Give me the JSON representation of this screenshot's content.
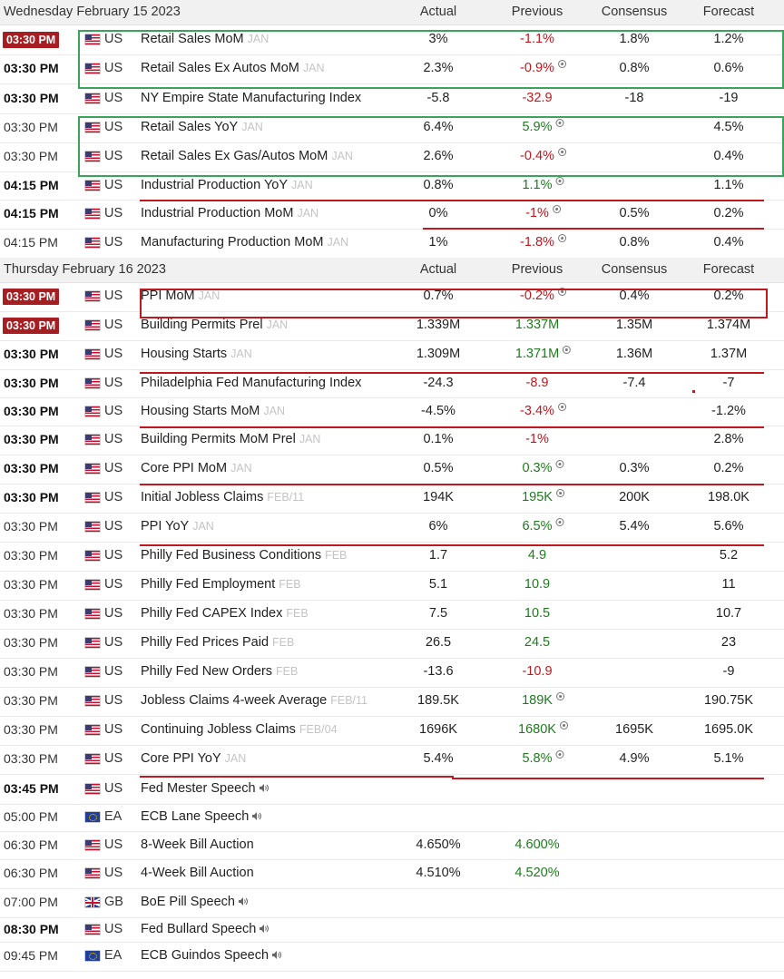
{
  "columns": {
    "actual": "Actual",
    "previous": "Previous",
    "consensus": "Consensus",
    "forecast": "Forecast"
  },
  "days": [
    {
      "title": "Wednesday February 15 2023",
      "rows": [
        {
          "time": "03:30 PM",
          "style": "badge",
          "flag": "us",
          "country": "US",
          "event": "Retail Sales MoM",
          "period": "JAN",
          "actual": "3%",
          "previous": "-1.1%",
          "prev_color": "red",
          "prev_revised": false,
          "consensus": "1.8%",
          "forecast": "1.2%"
        },
        {
          "time": "03:30 PM",
          "style": "bold",
          "flag": "us",
          "country": "US",
          "event": "Retail Sales Ex Autos MoM",
          "period": "JAN",
          "actual": "2.3%",
          "previous": "-0.9%",
          "prev_color": "red",
          "prev_revised": true,
          "consensus": "0.8%",
          "forecast": "0.6%"
        },
        {
          "time": "03:30 PM",
          "style": "bold",
          "flag": "us",
          "country": "US",
          "event": "NY Empire State Manufacturing Index",
          "period": "",
          "actual": "-5.8",
          "previous": "-32.9",
          "prev_color": "red",
          "prev_revised": false,
          "consensus": "-18",
          "forecast": "-19"
        },
        {
          "time": "03:30 PM",
          "style": "",
          "flag": "us",
          "country": "US",
          "event": "Retail Sales YoY",
          "period": "JAN",
          "actual": "6.4%",
          "previous": "5.9%",
          "prev_color": "green",
          "prev_revised": true,
          "consensus": "",
          "forecast": "4.5%"
        },
        {
          "time": "03:30 PM",
          "style": "",
          "flag": "us",
          "country": "US",
          "event": "Retail Sales Ex Gas/Autos MoM",
          "period": "JAN",
          "actual": "2.6%",
          "previous": "-0.4%",
          "prev_color": "red",
          "prev_revised": true,
          "consensus": "",
          "forecast": "0.4%"
        },
        {
          "time": "04:15 PM",
          "style": "bold",
          "flag": "us",
          "country": "US",
          "event": "Industrial Production YoY",
          "period": "JAN",
          "actual": "0.8%",
          "previous": "1.1%",
          "prev_color": "green",
          "prev_revised": true,
          "consensus": "",
          "forecast": "1.1%"
        },
        {
          "time": "04:15 PM",
          "style": "bold",
          "flag": "us",
          "country": "US",
          "event": "Industrial Production MoM",
          "period": "JAN",
          "actual": "0%",
          "previous": "-1%",
          "prev_color": "red",
          "prev_revised": true,
          "consensus": "0.5%",
          "forecast": "0.2%"
        },
        {
          "time": "04:15 PM",
          "style": "",
          "flag": "us",
          "country": "US",
          "event": "Manufacturing Production MoM",
          "period": "JAN",
          "actual": "1%",
          "previous": "-1.8%",
          "prev_color": "red",
          "prev_revised": true,
          "consensus": "0.8%",
          "forecast": "0.4%"
        }
      ]
    },
    {
      "title": "Thursday February 16 2023",
      "rows": [
        {
          "time": "03:30 PM",
          "style": "badge",
          "flag": "us",
          "country": "US",
          "event": "PPI MoM",
          "period": "JAN",
          "actual": "0.7%",
          "previous": "-0.2%",
          "prev_color": "red",
          "prev_revised": true,
          "consensus": "0.4%",
          "forecast": "0.2%"
        },
        {
          "time": "03:30 PM",
          "style": "badge",
          "flag": "us",
          "country": "US",
          "event": "Building Permits Prel",
          "period": "JAN",
          "actual": "1.339M",
          "previous": "1.337M",
          "prev_color": "green",
          "prev_revised": false,
          "consensus": "1.35M",
          "forecast": "1.374M"
        },
        {
          "time": "03:30 PM",
          "style": "bold",
          "flag": "us",
          "country": "US",
          "event": "Housing Starts",
          "period": "JAN",
          "actual": "1.309M",
          "previous": "1.371M",
          "prev_color": "green",
          "prev_revised": true,
          "consensus": "1.36M",
          "forecast": "1.37M"
        },
        {
          "time": "03:30 PM",
          "style": "bold",
          "flag": "us",
          "country": "US",
          "event": "Philadelphia Fed Manufacturing Index",
          "period": "",
          "actual": "-24.3",
          "previous": "-8.9",
          "prev_color": "red",
          "prev_revised": false,
          "consensus": "-7.4",
          "forecast": "-7"
        },
        {
          "time": "03:30 PM",
          "style": "bold",
          "flag": "us",
          "country": "US",
          "event": "Housing Starts MoM",
          "period": "JAN",
          "actual": "-4.5%",
          "previous": "-3.4%",
          "prev_color": "red",
          "prev_revised": true,
          "consensus": "",
          "forecast": "-1.2%"
        },
        {
          "time": "03:30 PM",
          "style": "bold",
          "flag": "us",
          "country": "US",
          "event": "Building Permits MoM Prel",
          "period": "JAN",
          "actual": "0.1%",
          "previous": "-1%",
          "prev_color": "red",
          "prev_revised": false,
          "consensus": "",
          "forecast": "2.8%"
        },
        {
          "time": "03:30 PM",
          "style": "bold",
          "flag": "us",
          "country": "US",
          "event": "Core PPI MoM",
          "period": "JAN",
          "actual": "0.5%",
          "previous": "0.3%",
          "prev_color": "green",
          "prev_revised": true,
          "consensus": "0.3%",
          "forecast": "0.2%"
        },
        {
          "time": "03:30 PM",
          "style": "bold",
          "flag": "us",
          "country": "US",
          "event": "Initial Jobless Claims",
          "period": "FEB/11",
          "actual": "194K",
          "previous": "195K",
          "prev_color": "green",
          "prev_revised": true,
          "consensus": "200K",
          "forecast": "198.0K"
        },
        {
          "time": "03:30 PM",
          "style": "",
          "flag": "us",
          "country": "US",
          "event": "PPI YoY",
          "period": "JAN",
          "actual": "6%",
          "previous": "6.5%",
          "prev_color": "green",
          "prev_revised": true,
          "consensus": "5.4%",
          "forecast": "5.6%"
        },
        {
          "time": "03:30 PM",
          "style": "",
          "flag": "us",
          "country": "US",
          "event": "Philly Fed Business Conditions",
          "period": "FEB",
          "actual": "1.7",
          "previous": "4.9",
          "prev_color": "green",
          "prev_revised": false,
          "consensus": "",
          "forecast": "5.2"
        },
        {
          "time": "03:30 PM",
          "style": "",
          "flag": "us",
          "country": "US",
          "event": "Philly Fed Employment",
          "period": "FEB",
          "actual": "5.1",
          "previous": "10.9",
          "prev_color": "green",
          "prev_revised": false,
          "consensus": "",
          "forecast": "11"
        },
        {
          "time": "03:30 PM",
          "style": "",
          "flag": "us",
          "country": "US",
          "event": "Philly Fed CAPEX Index",
          "period": "FEB",
          "actual": "7.5",
          "previous": "10.5",
          "prev_color": "green",
          "prev_revised": false,
          "consensus": "",
          "forecast": "10.7"
        },
        {
          "time": "03:30 PM",
          "style": "",
          "flag": "us",
          "country": "US",
          "event": "Philly Fed Prices Paid",
          "period": "FEB",
          "actual": "26.5",
          "previous": "24.5",
          "prev_color": "green",
          "prev_revised": false,
          "consensus": "",
          "forecast": "23"
        },
        {
          "time": "03:30 PM",
          "style": "",
          "flag": "us",
          "country": "US",
          "event": "Philly Fed New Orders",
          "period": "FEB",
          "actual": "-13.6",
          "previous": "-10.9",
          "prev_color": "red",
          "prev_revised": false,
          "consensus": "",
          "forecast": "-9"
        },
        {
          "time": "03:30 PM",
          "style": "",
          "flag": "us",
          "country": "US",
          "event": "Jobless Claims 4-week Average",
          "period": "FEB/11",
          "actual": "189.5K",
          "previous": "189K",
          "prev_color": "green",
          "prev_revised": true,
          "consensus": "",
          "forecast": "190.75K"
        },
        {
          "time": "03:30 PM",
          "style": "",
          "flag": "us",
          "country": "US",
          "event": "Continuing Jobless Claims",
          "period": "FEB/04",
          "actual": "1696K",
          "previous": "1680K",
          "prev_color": "green",
          "prev_revised": true,
          "consensus": "1695K",
          "forecast": "1695.0K"
        },
        {
          "time": "03:30 PM",
          "style": "",
          "flag": "us",
          "country": "US",
          "event": "Core PPI YoY",
          "period": "JAN",
          "actual": "5.4%",
          "previous": "5.8%",
          "prev_color": "green",
          "prev_revised": true,
          "consensus": "4.9%",
          "forecast": "5.1%"
        },
        {
          "time": "03:45 PM",
          "style": "bold",
          "flag": "us",
          "country": "US",
          "event": "Fed Mester Speech",
          "period": "",
          "speech": true,
          "actual": "",
          "previous": "",
          "prev_color": "",
          "prev_revised": false,
          "consensus": "",
          "forecast": ""
        },
        {
          "time": "05:00 PM",
          "style": "",
          "flag": "eu",
          "country": "EA",
          "event": "ECB Lane Speech",
          "period": "",
          "speech": true,
          "actual": "",
          "previous": "",
          "prev_color": "",
          "prev_revised": false,
          "consensus": "",
          "forecast": ""
        },
        {
          "time": "06:30 PM",
          "style": "",
          "flag": "us",
          "country": "US",
          "event": "8-Week Bill Auction",
          "period": "",
          "actual": "4.650%",
          "previous": "4.600%",
          "prev_color": "green",
          "prev_revised": false,
          "consensus": "",
          "forecast": ""
        },
        {
          "time": "06:30 PM",
          "style": "",
          "flag": "us",
          "country": "US",
          "event": "4-Week Bill Auction",
          "period": "",
          "actual": "4.510%",
          "previous": "4.520%",
          "prev_color": "green",
          "prev_revised": false,
          "consensus": "",
          "forecast": ""
        },
        {
          "time": "07:00 PM",
          "style": "",
          "flag": "gb",
          "country": "GB",
          "event": "BoE Pill Speech",
          "period": "",
          "speech": true,
          "actual": "",
          "previous": "",
          "prev_color": "",
          "prev_revised": false,
          "consensus": "",
          "forecast": ""
        },
        {
          "time": "08:30 PM",
          "style": "bold",
          "flag": "us",
          "country": "US",
          "event": "Fed Bullard Speech",
          "period": "",
          "speech": true,
          "actual": "",
          "previous": "",
          "prev_color": "",
          "prev_revised": false,
          "consensus": "",
          "forecast": ""
        },
        {
          "time": "09:45 PM",
          "style": "",
          "flag": "eu",
          "country": "EA",
          "event": "ECB Guindos Speech",
          "period": "",
          "speech": true,
          "actual": "",
          "previous": "",
          "prev_color": "",
          "prev_revised": false,
          "consensus": "",
          "forecast": ""
        }
      ]
    }
  ],
  "annotation_colors": {
    "green_box": "#3aa55a",
    "red_mark": "#c0181f"
  }
}
